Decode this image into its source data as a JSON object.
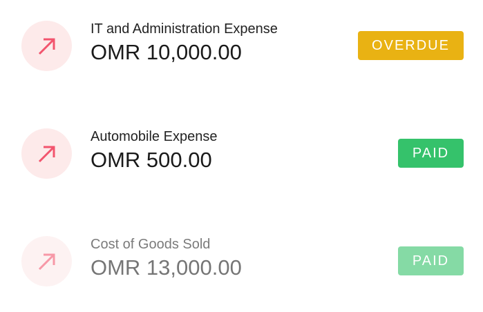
{
  "transactions": [
    {
      "title": "IT and Administration Expense",
      "amount": "OMR 10,000.00",
      "status": "OVERDUE",
      "status_color": "#e9b213",
      "icon": "arrow-up-right-icon"
    },
    {
      "title": "Automobile Expense",
      "amount": "OMR 500.00",
      "status": "PAID",
      "status_color": "#35c26b",
      "icon": "arrow-up-right-icon"
    },
    {
      "title": "Cost of Goods Sold",
      "amount": "OMR 13,000.00",
      "status": "PAID",
      "status_color": "#35c26b",
      "icon": "arrow-up-right-icon"
    }
  ],
  "colors": {
    "icon_bg": "#fdeaea",
    "icon_arrow": "#f2546d"
  }
}
